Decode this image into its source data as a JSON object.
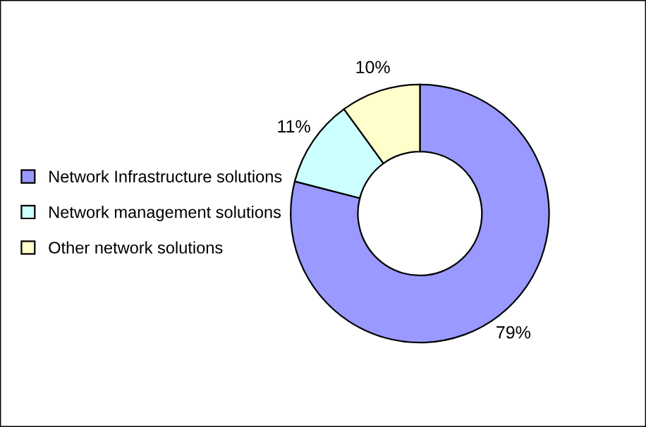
{
  "chart_data": {
    "type": "donut",
    "categories": [
      "Network Infrastructure solutions",
      "Network management solutions",
      "Other network solutions"
    ],
    "values": [
      79,
      11,
      10
    ],
    "colors": [
      "#9999ff",
      "#ccffff",
      "#ffffcc"
    ],
    "value_labels": [
      "79%",
      "11%",
      "10%"
    ],
    "legend": "left"
  }
}
